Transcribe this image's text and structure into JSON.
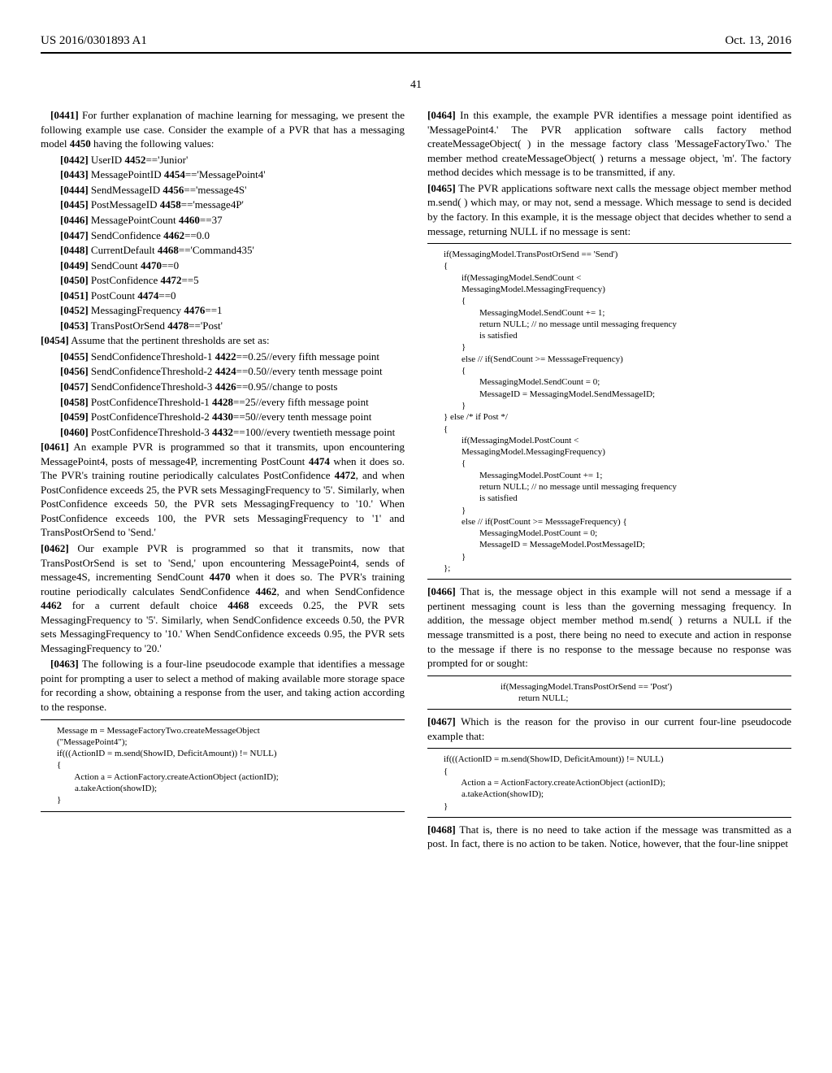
{
  "header": {
    "pub_id": "US 2016/0301893 A1",
    "pub_date": "Oct. 13, 2016",
    "page_num": "41"
  },
  "left": {
    "p0441": "[0441]   For further explanation of machine learning for messaging, we present the following example use case. Consider the example of a PVR that has a messaging model 4450 having the following values:",
    "items1": [
      "[0442]   UserID 4452=='Junior'",
      "[0443]   MessagePointID 4454=='MessagePoint4'",
      "[0444]   SendMessageID 4456=='message4S'",
      "[0445]   PostMessageID 4458=='message4P'",
      "[0446]   MessagePointCount 4460==37",
      "[0447]   SendConfidence 4462==0.0",
      "[0448]   CurrentDefault 4468=='Command435'",
      "[0449]   SendCount 4470==0",
      "[0450]   PostConfidence 4472==5",
      "[0451]   PostCount 4474==0",
      "[0452]   MessagingFrequency 4476==1",
      "[0453]   TransPostOrSend 4478=='Post'"
    ],
    "p0454": "[0454]   Assume that the pertinent thresholds are set as:",
    "thresholds": [
      "[0455]   SendConfidenceThreshold-1 4422==0.25//every fifth message point",
      "[0456]   SendConfidenceThreshold-2 4424==0.50//every tenth message point",
      "[0457]   SendConfidenceThreshold-3    4426==0.95//change to posts",
      "[0458]   PostConfidenceThreshold-1   4428==25//every fifth message point",
      "[0459]   PostConfidenceThreshold-2   4430==50//every tenth message point",
      "[0460]   PostConfidenceThreshold-3  4432==100//every twentieth message point"
    ],
    "p0461": "[0461]   An example PVR is programmed so that it transmits, upon encountering MessagePoint4, posts of message4P, incrementing PostCount 4474 when it does so. The PVR's training routine periodically calculates PostConfidence 4472, and when PostConfidence exceeds 25, the PVR sets MessagingFrequency to '5'. Similarly, when PostConfidence exceeds 50, the PVR sets MessagingFrequency to '10.' When PostConfidence exceeds 100, the PVR sets MessagingFrequency to '1' and TransPostOrSend to 'Send.'",
    "p0462": "[0462]   Our example PVR is programmed so that it transmits, now that TransPostOrSend is set to 'Send,' upon encountering MessagePoint4, sends of message4S, incrementing SendCount 4470 when it does so. The PVR's training routine periodically calculates SendConfidence 4462, and when SendConfidence 4462 for a current default choice 4468 exceeds 0.25, the PVR sets MessagingFrequency to '5'. Similarly, when SendConfidence exceeds 0.50, the PVR sets MessagingFrequency to '10.' When SendConfidence exceeds 0.95, the PVR sets MessagingFrequency to '20.'",
    "p0463": "[0463]   The following is a four-line pseudocode example that identifies a message point for prompting a user to select a method of making available more storage space for recording a show, obtaining a response from the user, and taking action according to the response.",
    "code1": "Message m = MessageFactoryTwo.createMessageObject\n(\"MessagePoint4\");\nif(((ActionID = m.send(ShowID, DeficitAmount)) != NULL)\n{\n        Action a = ActionFactory.createActionObject (actionID);\n        a.takeAction(showID);\n}"
  },
  "right": {
    "p0464": "[0464]   In this example, the example PVR identifies a message point identified as 'MessagePoint4.' The PVR application software calls factory method createMessageObject( ) in the message factory class 'MessageFactoryTwo.' The member method createMessageObject( ) returns a message object, 'm'. The factory method decides which message is to be transmitted, if any.",
    "p0465": "[0465]   The PVR applications software next calls the message object member method m.send( ) which may, or may not, send a message. Which message to send is decided by the factory. In this example, it is the message object that decides whether to send a message, returning NULL if no message is sent:",
    "code2": "if(MessagingModel.TransPostOrSend == 'Send')\n{\n        if(MessagingModel.SendCount <\n        MessagingModel.MessagingFrequency)\n        {\n                MessagingModel.SendCount += 1;\n                return NULL; // no message until messaging frequency\n                is satisfied\n        }\n        else // if(SendCount >= MesssageFrequency)\n        {\n                MessagingModel.SendCount = 0;\n                MessageID = MessagingModel.SendMessageID;\n        }\n} else /* if Post */\n{\n        if(MessagingModel.PostCount <\n        MessagingModel.MessagingFrequency)\n        {\n                MessagingModel.PostCount += 1;\n                return NULL; // no message until messaging frequency\n                is satisfied\n        }\n        else // if(PostCount >= MesssageFrequency) {\n                MessagingModel.PostCount = 0;\n                MessageID = MessageModel.PostMessageID;\n        }\n};",
    "p0466": "[0466]   That is, the message object in this example will not send a message if a pertinent messaging count is less than the governing messaging frequency. In addition, the message object member method m.send( ) returns a NULL if the message transmitted is a post, there being no need to execute and action in response to the message if there is no response to the message because no response was prompted for or sought:",
    "code3": "if(MessagingModel.TransPostOrSend == 'Post')\n        return NULL;",
    "p0467": "[0467]   Which is the reason for the proviso in our current four-line pseudocode example that:",
    "code4": "if(((ActionID = m.send(ShowID, DeficitAmount)) != NULL)\n{\n        Action a = ActionFactory.createActionObject (actionID);\n        a.takeAction(showID);\n}",
    "p0468": "[0468]   That is, there is no need to take action if the message was transmitted as a post. In fact, there is no action to be taken. Notice, however, that the four-line snippet"
  }
}
